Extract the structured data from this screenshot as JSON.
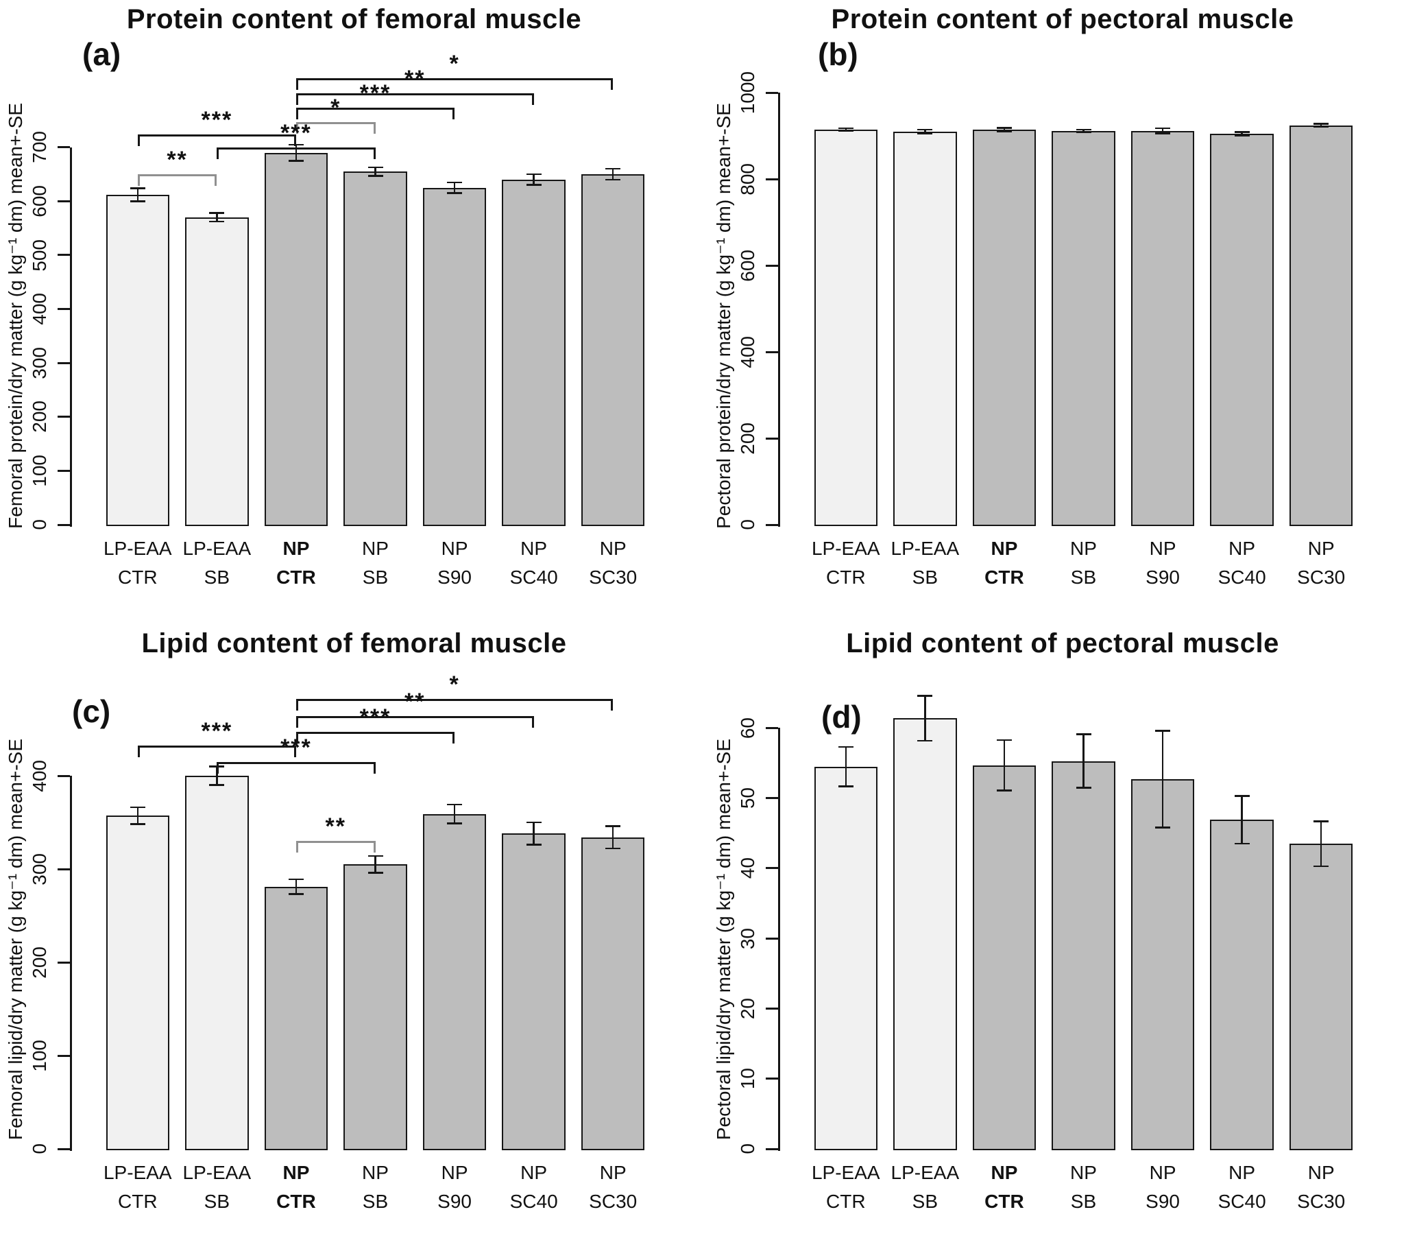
{
  "colors": {
    "light_bar": "#f1f1f1",
    "dark_bar": "#bdbdbd",
    "bar_border": "#161616",
    "bracket_black": "#161616",
    "bracket_gray": "#909090",
    "text": "#111111"
  },
  "chart_data": [
    {
      "id": "a",
      "type": "bar",
      "title": "Protein content of femoral muscle",
      "panel_label": "(a)",
      "ylabel": "Femoral protein/dry matter (g kg⁻¹ dm) mean+-SE",
      "categories": [
        [
          "LP-EAA",
          "CTR"
        ],
        [
          "LP-EAA",
          "SB"
        ],
        [
          "NP",
          "CTR"
        ],
        [
          "NP",
          "SB"
        ],
        [
          "NP",
          "S90"
        ],
        [
          "NP",
          "SC40"
        ],
        [
          "NP",
          "SC30"
        ]
      ],
      "bold_category_index": 2,
      "values": [
        612,
        570,
        690,
        655,
        625,
        640,
        650
      ],
      "se": [
        12,
        8,
        15,
        8,
        10,
        10,
        10
      ],
      "bar_shades": [
        "light",
        "light",
        "dark",
        "dark",
        "dark",
        "dark",
        "dark"
      ],
      "axis_max": 700,
      "tick_step": 100,
      "ylim": [
        0,
        865
      ],
      "grid": false,
      "brackets": [
        {
          "from": 2,
          "to": 6,
          "label": "*",
          "y": 828,
          "color": "black"
        },
        {
          "from": 2,
          "to": 5,
          "label": "**",
          "y": 800,
          "color": "black"
        },
        {
          "from": 2,
          "to": 4,
          "label": "***",
          "y": 773,
          "color": "black"
        },
        {
          "from": 2,
          "to": 3,
          "label": "*",
          "y": 747,
          "color": "gray"
        },
        {
          "from": 0,
          "to": 2,
          "label": "***",
          "y": 724,
          "color": "black"
        },
        {
          "from": 1,
          "to": 3,
          "label": "***",
          "y": 700,
          "color": "black"
        },
        {
          "from": 0,
          "to": 1,
          "label": "**",
          "y": 650,
          "color": "gray"
        }
      ]
    },
    {
      "id": "b",
      "type": "bar",
      "title": "Protein content of pectoral muscle",
      "panel_label": "(b)",
      "ylabel": "Pectoral protein/dry matter (g kg⁻¹ dm) mean+-SE",
      "categories": [
        [
          "LP-EAA",
          "CTR"
        ],
        [
          "LP-EAA",
          "SB"
        ],
        [
          "NP",
          "CTR"
        ],
        [
          "NP",
          "SB"
        ],
        [
          "NP",
          "S90"
        ],
        [
          "NP",
          "SC40"
        ],
        [
          "NP",
          "SC30"
        ]
      ],
      "bold_category_index": 2,
      "values": [
        915,
        910,
        915,
        912,
        912,
        905,
        925
      ],
      "se": [
        3,
        5,
        4,
        3,
        6,
        4,
        3
      ],
      "bar_shades": [
        "light",
        "light",
        "dark",
        "dark",
        "dark",
        "dark",
        "dark"
      ],
      "axis_max": 1000,
      "tick_step": 200,
      "ylim": [
        0,
        1080
      ],
      "grid": false,
      "brackets": []
    },
    {
      "id": "c",
      "type": "bar",
      "title": "Lipid content of femoral muscle",
      "panel_label": "(c)",
      "ylabel": "Femoral lipid/dry matter (g kg⁻¹ dm) mean+-SE",
      "categories": [
        [
          "LP-EAA",
          "CTR"
        ],
        [
          "LP-EAA",
          "SB"
        ],
        [
          "NP",
          "CTR"
        ],
        [
          "NP",
          "SB"
        ],
        [
          "NP",
          "S90"
        ],
        [
          "NP",
          "SC40"
        ],
        [
          "NP",
          "SC30"
        ]
      ],
      "bold_category_index": 2,
      "values": [
        357,
        400,
        281,
        305,
        359,
        338,
        334
      ],
      "se": [
        9,
        10,
        8,
        9,
        10,
        12,
        12
      ],
      "bar_shades": [
        "light",
        "light",
        "dark",
        "dark",
        "dark",
        "dark",
        "dark"
      ],
      "axis_max": 400,
      "tick_step": 100,
      "ylim": [
        0,
        500
      ],
      "grid": false,
      "brackets": [
        {
          "from": 2,
          "to": 6,
          "label": "*",
          "y": 482,
          "color": "black"
        },
        {
          "from": 2,
          "to": 5,
          "label": "**",
          "y": 464,
          "color": "black"
        },
        {
          "from": 2,
          "to": 4,
          "label": "***",
          "y": 447,
          "color": "black"
        },
        {
          "from": 0,
          "to": 2,
          "label": "***",
          "y": 432,
          "color": "black"
        },
        {
          "from": 1,
          "to": 3,
          "label": "***",
          "y": 415,
          "color": "black"
        },
        {
          "from": 2,
          "to": 3,
          "label": "**",
          "y": 330,
          "color": "gray"
        }
      ]
    },
    {
      "id": "d",
      "type": "bar",
      "title": "Lipid content of pectoral muscle",
      "panel_label": "(d)",
      "ylabel": "Pectoral lipid/dry matter (g kg⁻¹ dm) mean+-SE",
      "categories": [
        [
          "LP-EAA",
          "CTR"
        ],
        [
          "LP-EAA",
          "SB"
        ],
        [
          "NP",
          "CTR"
        ],
        [
          "NP",
          "SB"
        ],
        [
          "NP",
          "S90"
        ],
        [
          "NP",
          "SC40"
        ],
        [
          "NP",
          "SC30"
        ]
      ],
      "bold_category_index": 2,
      "values": [
        54.5,
        61.4,
        54.7,
        55.3,
        52.7,
        46.9,
        43.5
      ],
      "se": [
        2.8,
        3.2,
        3.6,
        3.8,
        6.9,
        3.4,
        3.2
      ],
      "bar_shades": [
        "light",
        "light",
        "dark",
        "dark",
        "dark",
        "dark",
        "dark"
      ],
      "axis_max": 60,
      "tick_step": 10,
      "ylim": [
        0,
        66.5
      ],
      "grid": false,
      "brackets": []
    }
  ]
}
